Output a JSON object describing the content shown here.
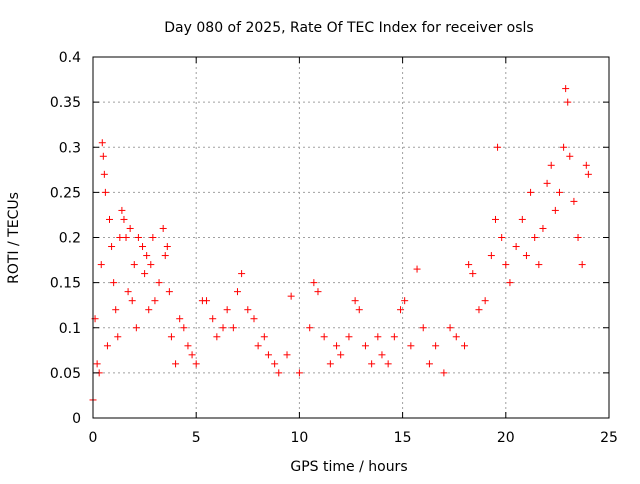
{
  "chart_data": {
    "type": "scatter",
    "title": "Day 080 of 2025, Rate Of TEC Index for receiver osls",
    "xlabel": "GPS time / hours",
    "ylabel": "ROTI / TECUs",
    "xlim": [
      0,
      25
    ],
    "ylim": [
      0,
      0.4
    ],
    "xticks": [
      0,
      5,
      10,
      15,
      20,
      25
    ],
    "xtick_labels": [
      "0",
      "5",
      "10",
      "15",
      "20",
      "25"
    ],
    "yticks": [
      0,
      0.05,
      0.1,
      0.15,
      0.2,
      0.25,
      0.3,
      0.35,
      0.4
    ],
    "ytick_labels": [
      "0",
      "0.05",
      "0.1",
      "0.15",
      "0.2",
      "0.25",
      "0.3",
      "0.35",
      "0.4"
    ],
    "grid": true,
    "legend": "none",
    "marker": "plus",
    "color": "#ff0000",
    "series": [
      {
        "values_description_note": "",
        "points": [
          [
            0.0,
            0.02
          ],
          [
            0.1,
            0.11
          ],
          [
            0.2,
            0.06
          ],
          [
            0.3,
            0.05
          ],
          [
            0.4,
            0.17
          ],
          [
            0.45,
            0.305
          ],
          [
            0.5,
            0.29
          ],
          [
            0.55,
            0.27
          ],
          [
            0.6,
            0.25
          ],
          [
            0.7,
            0.08
          ],
          [
            0.8,
            0.22
          ],
          [
            0.9,
            0.19
          ],
          [
            1.0,
            0.15
          ],
          [
            1.1,
            0.12
          ],
          [
            1.2,
            0.09
          ],
          [
            1.3,
            0.2
          ],
          [
            1.4,
            0.23
          ],
          [
            1.5,
            0.22
          ],
          [
            1.6,
            0.2
          ],
          [
            1.7,
            0.14
          ],
          [
            1.8,
            0.21
          ],
          [
            1.9,
            0.13
          ],
          [
            2.0,
            0.17
          ],
          [
            2.1,
            0.1
          ],
          [
            2.2,
            0.2
          ],
          [
            2.4,
            0.19
          ],
          [
            2.5,
            0.16
          ],
          [
            2.6,
            0.18
          ],
          [
            2.7,
            0.12
          ],
          [
            2.8,
            0.17
          ],
          [
            2.9,
            0.2
          ],
          [
            3.0,
            0.13
          ],
          [
            3.2,
            0.15
          ],
          [
            3.4,
            0.21
          ],
          [
            3.5,
            0.18
          ],
          [
            3.6,
            0.19
          ],
          [
            3.7,
            0.14
          ],
          [
            3.8,
            0.09
          ],
          [
            4.0,
            0.06
          ],
          [
            4.2,
            0.11
          ],
          [
            4.4,
            0.1
          ],
          [
            4.6,
            0.08
          ],
          [
            4.8,
            0.07
          ],
          [
            5.0,
            0.06
          ],
          [
            5.3,
            0.13
          ],
          [
            5.5,
            0.13
          ],
          [
            5.8,
            0.11
          ],
          [
            6.0,
            0.09
          ],
          [
            6.3,
            0.1
          ],
          [
            6.5,
            0.12
          ],
          [
            6.8,
            0.1
          ],
          [
            7.0,
            0.14
          ],
          [
            7.2,
            0.16
          ],
          [
            7.5,
            0.12
          ],
          [
            7.8,
            0.11
          ],
          [
            8.0,
            0.08
          ],
          [
            8.3,
            0.09
          ],
          [
            8.5,
            0.07
          ],
          [
            8.8,
            0.06
          ],
          [
            9.0,
            0.05
          ],
          [
            9.4,
            0.07
          ],
          [
            9.6,
            0.135
          ],
          [
            10.0,
            0.05
          ],
          [
            10.5,
            0.1
          ],
          [
            10.7,
            0.15
          ],
          [
            10.9,
            0.14
          ],
          [
            11.2,
            0.09
          ],
          [
            11.5,
            0.06
          ],
          [
            11.8,
            0.08
          ],
          [
            12.0,
            0.07
          ],
          [
            12.4,
            0.09
          ],
          [
            12.7,
            0.13
          ],
          [
            12.9,
            0.12
          ],
          [
            13.2,
            0.08
          ],
          [
            13.5,
            0.06
          ],
          [
            13.8,
            0.09
          ],
          [
            14.0,
            0.07
          ],
          [
            14.3,
            0.06
          ],
          [
            14.6,
            0.09
          ],
          [
            14.9,
            0.12
          ],
          [
            15.1,
            0.13
          ],
          [
            15.4,
            0.08
          ],
          [
            15.7,
            0.165
          ],
          [
            16.0,
            0.1
          ],
          [
            16.3,
            0.06
          ],
          [
            16.6,
            0.08
          ],
          [
            17.0,
            0.05
          ],
          [
            17.3,
            0.1
          ],
          [
            17.6,
            0.09
          ],
          [
            18.0,
            0.08
          ],
          [
            18.2,
            0.17
          ],
          [
            18.4,
            0.16
          ],
          [
            18.7,
            0.12
          ],
          [
            19.0,
            0.13
          ],
          [
            19.3,
            0.18
          ],
          [
            19.5,
            0.22
          ],
          [
            19.6,
            0.3
          ],
          [
            19.8,
            0.2
          ],
          [
            20.0,
            0.17
          ],
          [
            20.2,
            0.15
          ],
          [
            20.5,
            0.19
          ],
          [
            20.8,
            0.22
          ],
          [
            21.0,
            0.18
          ],
          [
            21.2,
            0.25
          ],
          [
            21.4,
            0.2
          ],
          [
            21.6,
            0.17
          ],
          [
            21.8,
            0.21
          ],
          [
            22.0,
            0.26
          ],
          [
            22.2,
            0.28
          ],
          [
            22.4,
            0.23
          ],
          [
            22.6,
            0.25
          ],
          [
            22.8,
            0.3
          ],
          [
            22.9,
            0.365
          ],
          [
            23.0,
            0.35
          ],
          [
            23.1,
            0.29
          ],
          [
            23.3,
            0.24
          ],
          [
            23.5,
            0.2
          ],
          [
            23.7,
            0.17
          ],
          [
            23.9,
            0.28
          ],
          [
            24.0,
            0.27
          ]
        ]
      }
    ]
  }
}
